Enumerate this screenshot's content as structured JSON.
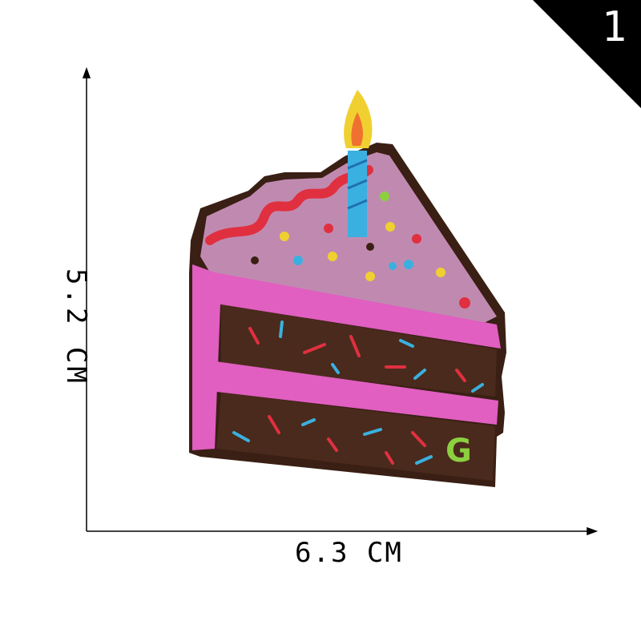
{
  "badge": {
    "number": "1"
  },
  "dimensions": {
    "width_label": "6.3 CM",
    "height_label": "5.2 CM"
  },
  "product": {
    "letter": "G",
    "colors": {
      "frosting": "#e05fc0",
      "cake": "#4a2a1c",
      "top": "#c08ab0",
      "candle": "#3ab0e0",
      "flame": "#f0d030",
      "letter": "#8cd040"
    }
  }
}
